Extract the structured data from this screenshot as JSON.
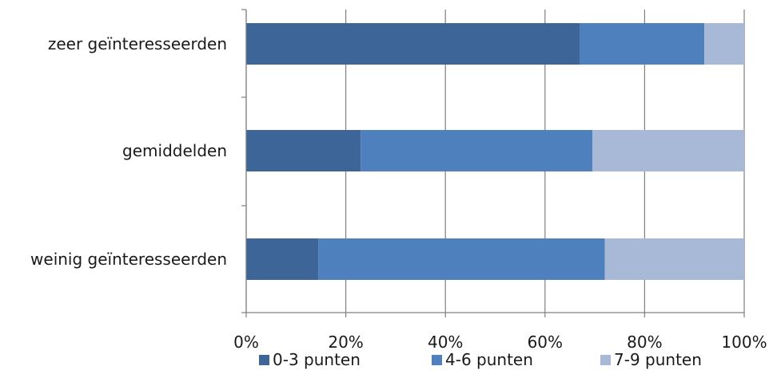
{
  "chart_data": {
    "type": "bar",
    "orientation": "horizontal",
    "stacked": "percent",
    "categories": [
      "zeer geïnteresseerden",
      "gemiddelden",
      "weinig geïnteresseerden"
    ],
    "series": [
      {
        "name": "0-3 punten",
        "values": [
          67,
          23,
          14.5
        ],
        "color": "#3e6598"
      },
      {
        "name": "4-6 punten",
        "values": [
          25,
          46.5,
          57.5
        ],
        "color": "#4d80bd"
      },
      {
        "name": "7-9 punten",
        "values": [
          8,
          30.5,
          28
        ],
        "color": "#a8b9d7"
      }
    ],
    "x_ticks": [
      "0%",
      "20%",
      "40%",
      "60%",
      "80%",
      "100%"
    ],
    "xlim": [
      0,
      100
    ],
    "grid": true,
    "legend_position": "bottom",
    "title": "",
    "xlabel": "",
    "ylabel": ""
  }
}
